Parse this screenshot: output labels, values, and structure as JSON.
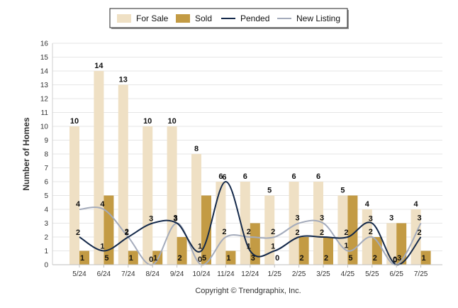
{
  "chart_data": {
    "type": "bar",
    "ylabel": "Number of Homes",
    "ylim": [
      0,
      16
    ],
    "yticks": [
      0,
      1,
      2,
      3,
      4,
      5,
      6,
      7,
      8,
      9,
      10,
      11,
      12,
      13,
      14,
      15,
      16
    ],
    "grid": true,
    "legend_position": "top-center",
    "categories": [
      "5/24",
      "6/24",
      "7/24",
      "8/24",
      "9/24",
      "10/24",
      "11/24",
      "12/24",
      "1/25",
      "2/25",
      "3/25",
      "4/25",
      "5/25",
      "6/25",
      "7/25"
    ],
    "series": [
      {
        "name": "For Sale",
        "kind": "bar",
        "color": "#efe0c4",
        "values": [
          10,
          14,
          13,
          10,
          10,
          8,
          6,
          6,
          5,
          6,
          6,
          5,
          4,
          3,
          4
        ]
      },
      {
        "name": "Sold",
        "kind": "bar",
        "color": "#c39b44",
        "values": [
          1,
          5,
          1,
          1,
          2,
          5,
          1,
          3,
          0,
          2,
          2,
          5,
          2,
          3,
          1
        ]
      },
      {
        "name": "Pended",
        "kind": "line",
        "color": "#14294a",
        "values": [
          2,
          1,
          2,
          3,
          3,
          1,
          6,
          1,
          1,
          2,
          2,
          2,
          3,
          0,
          2
        ]
      },
      {
        "name": "New Listing",
        "kind": "line",
        "color": "#a4abbb",
        "values": [
          4,
          4,
          2,
          0,
          3,
          0,
          2,
          2,
          2,
          3,
          3,
          1,
          2,
          0,
          3
        ]
      }
    ]
  },
  "footer": "Copyright © Trendgraphix, Inc."
}
